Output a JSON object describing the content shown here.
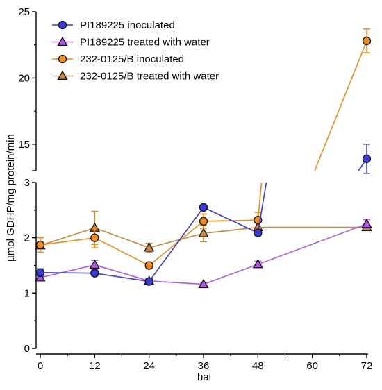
{
  "chart_data": {
    "type": "line",
    "title": "",
    "xlabel": "hai",
    "ylabel": "µmol GDHP/mg protein/min",
    "x_ticks": [
      0,
      12,
      24,
      36,
      48,
      60,
      72
    ],
    "y_ticks_lower": [
      0,
      1,
      2,
      3
    ],
    "y_ticks_upper": [
      15,
      20,
      25
    ],
    "y_axis_break": {
      "lower_range": [
        0,
        3
      ],
      "upper_range": [
        13,
        25
      ]
    },
    "grid": false,
    "legend_position": "top-left",
    "series": [
      {
        "name": "PI189225 inoculated",
        "color": "#3b3bdd",
        "marker": "circle",
        "points": [
          {
            "x": 0,
            "y": 1.37,
            "err": 0.07
          },
          {
            "x": 12,
            "y": 1.36,
            "err": 0.05
          },
          {
            "x": 24,
            "y": 1.21,
            "err": 0.05
          },
          {
            "x": 36,
            "y": 2.55,
            "err": 0.04
          },
          {
            "x": 48,
            "y": 2.09,
            "err": 0.05
          },
          {
            "x": 72,
            "y": 13.9,
            "err": 1.1
          }
        ]
      },
      {
        "name": "PI189225 treated with water",
        "color": "#b356e6",
        "marker": "triangle",
        "points": [
          {
            "x": 0,
            "y": 1.28,
            "err": 0.03
          },
          {
            "x": 12,
            "y": 1.51,
            "err": 0.08
          },
          {
            "x": 24,
            "y": 1.22,
            "err": 0.03
          },
          {
            "x": 36,
            "y": 1.16,
            "err": 0.02
          },
          {
            "x": 48,
            "y": 1.52,
            "err": 0.06
          },
          {
            "x": 72,
            "y": 2.25,
            "err": 0.08
          }
        ]
      },
      {
        "name": "232-0125/B inoculated",
        "color": "#f28a1a",
        "marker": "circle",
        "points": [
          {
            "x": 0,
            "y": 1.87,
            "err": 0.13
          },
          {
            "x": 12,
            "y": 2.0,
            "err": 0.18
          },
          {
            "x": 24,
            "y": 1.5,
            "err": 0.06
          },
          {
            "x": 36,
            "y": 2.3,
            "err": 0.13
          },
          {
            "x": 48,
            "y": 2.32,
            "err": 0.14
          },
          {
            "x": 72,
            "y": 22.8,
            "err": 0.9
          }
        ]
      },
      {
        "name": "232-0125/B treated with water",
        "color": "#c9893a",
        "marker": "triangle",
        "points": [
          {
            "x": 0,
            "y": 1.86,
            "err": 0.05
          },
          {
            "x": 12,
            "y": 2.18,
            "err": 0.3
          },
          {
            "x": 24,
            "y": 1.82,
            "err": 0.08
          },
          {
            "x": 36,
            "y": 2.08,
            "err": 0.15
          },
          {
            "x": 48,
            "y": 2.19,
            "err": 0.08
          },
          {
            "x": 72,
            "y": 2.19,
            "err": 0.05
          }
        ]
      }
    ]
  }
}
